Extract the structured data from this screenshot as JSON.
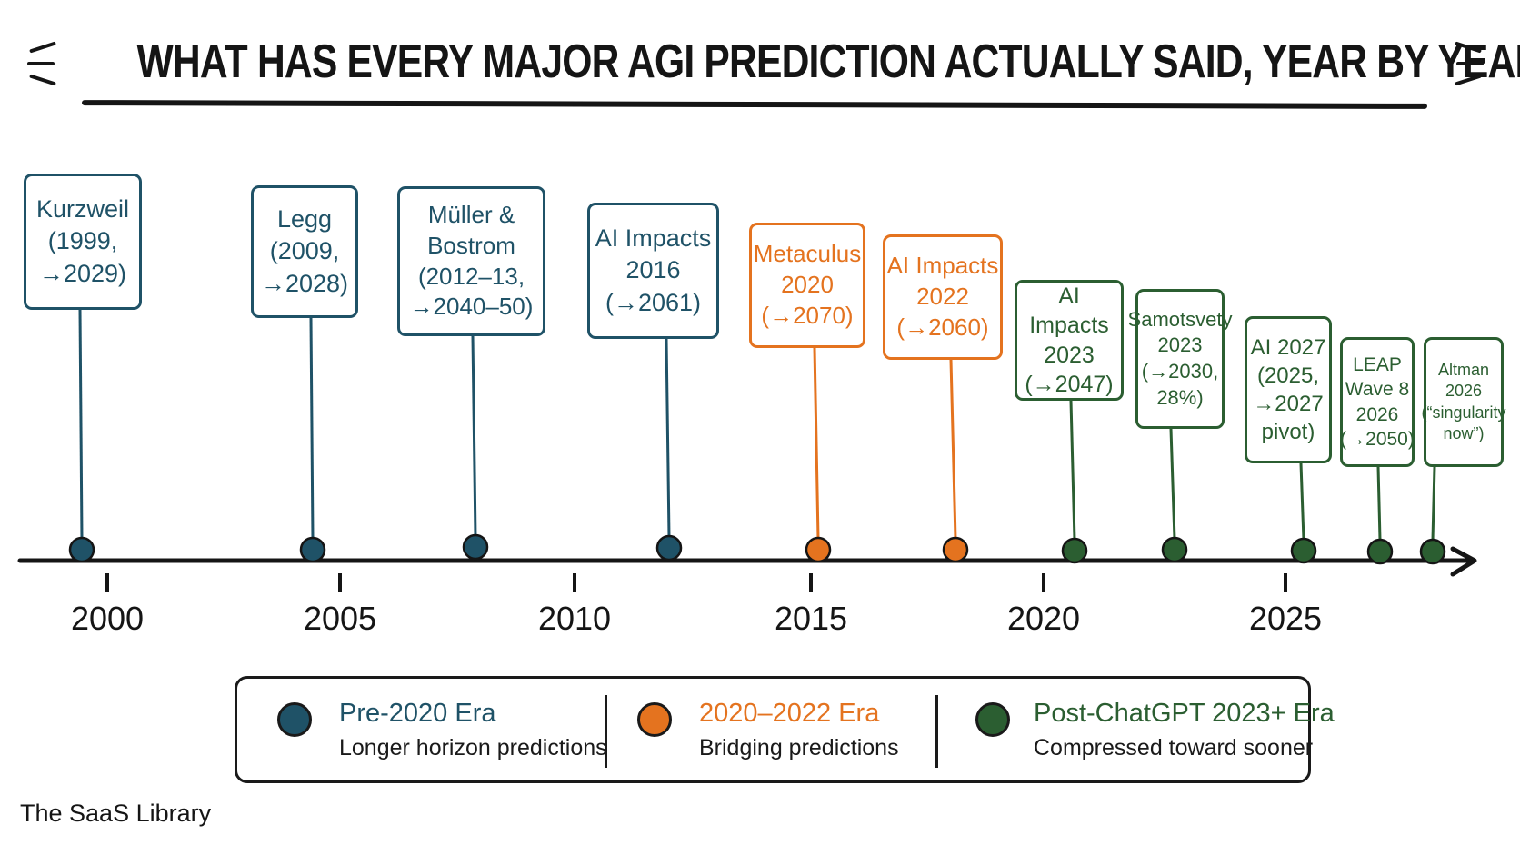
{
  "title": "WHAT HAS EVERY MAJOR AGI PREDICTION ACTUALLY SAID, YEAR BY YEAR?",
  "colors": {
    "pre": "#1f5267",
    "mid": "#e4731f",
    "post": "#2b5e31",
    "ink": "#151515"
  },
  "axis": {
    "years": [
      "2000",
      "2005",
      "2010",
      "2015",
      "2020",
      "2025"
    ]
  },
  "predictions": [
    {
      "text": "Kurzweil\n(1999,\n→2029)",
      "era": "pre"
    },
    {
      "text": "Legg\n(2009,\n→2028)",
      "era": "pre"
    },
    {
      "text": "Müller &\nBostrom\n(2012–13,\n→2040–50)",
      "era": "pre"
    },
    {
      "text": "AI Impacts\n2016\n(→2061)",
      "era": "pre"
    },
    {
      "text": "Metaculus\n2020\n(→2070)",
      "era": "mid"
    },
    {
      "text": "AI Impacts\n2022\n(→2060)",
      "era": "mid"
    },
    {
      "text": "AI Impacts\n2023\n(→2047)",
      "era": "post"
    },
    {
      "text": "Samotsvety\n2023\n(→2030,\n28%)",
      "era": "post"
    },
    {
      "text": "AI 2027\n(2025,\n→2027\npivot)",
      "era": "post"
    },
    {
      "text": "LEAP\nWave 8\n2026\n(→2050)",
      "era": "post"
    },
    {
      "text": "Altman\n2026\n(“singularity\nnow”)",
      "era": "post"
    }
  ],
  "legend": {
    "pre": {
      "title": "Pre-2020 Era",
      "subtitle": "Longer horizon predictions"
    },
    "mid": {
      "title": "2020–2022 Era",
      "subtitle": "Bridging predictions"
    },
    "post": {
      "title": "Post-ChatGPT 2023+ Era",
      "subtitle": "Compressed toward sooner"
    }
  },
  "footer": "The SaaS Library"
}
